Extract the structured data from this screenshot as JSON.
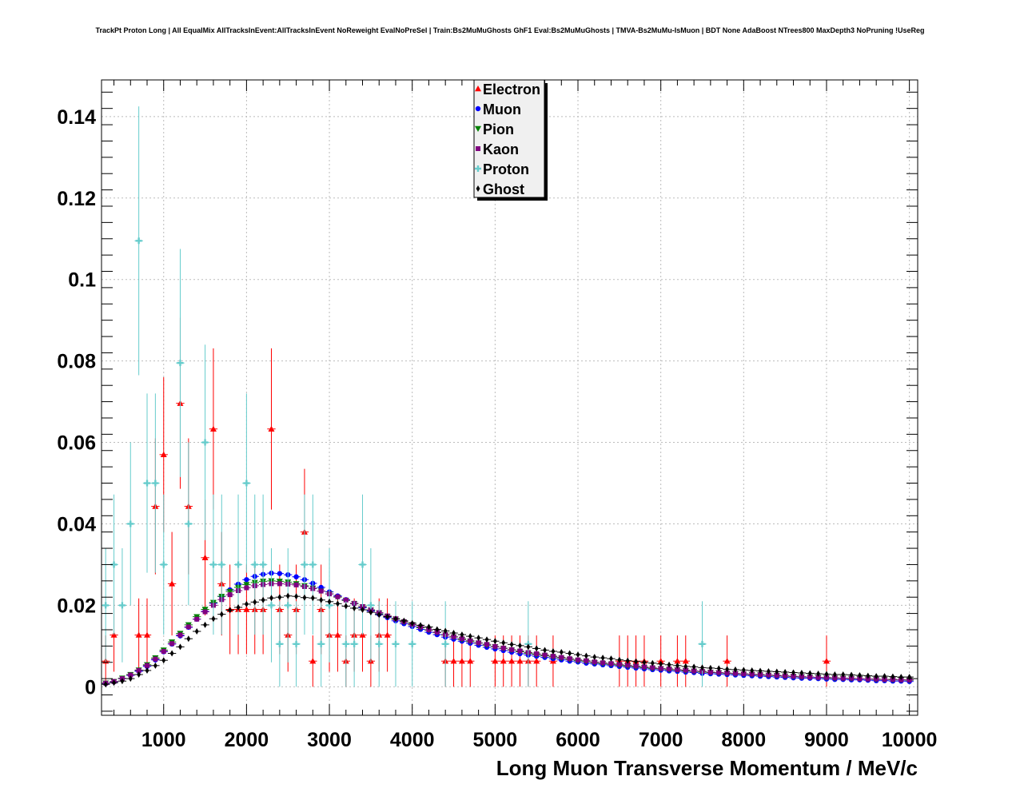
{
  "chart_data": {
    "type": "scatter",
    "title": "TrackPt Proton Long | All EqualMix AllTracksInEvent:AllTracksInEvent NoReweight EvalNoPreSel | Train:Bs2MuMuGhosts GhF1 Eval:Bs2MuMuGhosts | TMVA-Bs2MuMu-IsMuon | BDT None AdaBoost NTrees800 MaxDepth3 NoPruning !UseReg",
    "xlabel": "Long Muon Transverse Momentum / MeV/c",
    "ylabel": "",
    "xlim": [
      250,
      10100
    ],
    "ylim": [
      -0.007,
      0.149
    ],
    "xticks": [
      1000,
      2000,
      3000,
      4000,
      5000,
      6000,
      7000,
      8000,
      9000,
      10000
    ],
    "yticks": [
      0,
      0.02,
      0.04,
      0.06,
      0.08,
      0.1,
      0.12,
      0.14
    ],
    "xtick_labels": [
      "1000",
      "2000",
      "3000",
      "4000",
      "5000",
      "6000",
      "7000",
      "8000",
      "9000",
      "10000"
    ],
    "ytick_labels": [
      "0",
      "0.02",
      "0.04",
      "0.06",
      "0.08",
      "0.1",
      "0.12",
      "0.14"
    ],
    "grid": true,
    "legend_position": "top-center",
    "bin_width": 100,
    "series": [
      {
        "name": "Electron",
        "color": "#ff0000",
        "marker": "triangle-up",
        "x": [
          300,
          400,
          700,
          800,
          900,
          1000,
          1100,
          1200,
          1300,
          1500,
          1600,
          1700,
          1800,
          1900,
          2000,
          2100,
          2200,
          2300,
          2400,
          2500,
          2600,
          2700,
          2800,
          2900,
          3000,
          3100,
          3200,
          3300,
          3400,
          3500,
          3600,
          3700,
          4400,
          4500,
          4600,
          4700,
          5000,
          5100,
          5200,
          5300,
          5400,
          5500,
          5700,
          6500,
          6600,
          6700,
          6800,
          7000,
          7200,
          7300,
          7800,
          9000
        ],
        "y": [
          0.0063,
          0.0127,
          0.0127,
          0.0127,
          0.0443,
          0.057,
          0.0253,
          0.0696,
          0.0443,
          0.0317,
          0.0633,
          0.0253,
          0.019,
          0.019,
          0.019,
          0.019,
          0.019,
          0.0633,
          0.019,
          0.0127,
          0.019,
          0.038,
          0.0063,
          0.019,
          0.0127,
          0.0127,
          0.0063,
          0.0127,
          0.0127,
          0.0063,
          0.0127,
          0.0127,
          0.0063,
          0.0063,
          0.0063,
          0.0063,
          0.0063,
          0.0063,
          0.0063,
          0.0063,
          0.0063,
          0.0063,
          0.0063,
          0.0063,
          0.0063,
          0.0063,
          0.0063,
          0.0063,
          0.0063,
          0.0063,
          0.0063,
          0.0063
        ],
        "yerr": [
          0.0063,
          0.009,
          0.009,
          0.009,
          0.0167,
          0.019,
          0.0127,
          0.021,
          0.0167,
          0.0142,
          0.0198,
          0.0127,
          0.011,
          0.011,
          0.011,
          0.011,
          0.011,
          0.0198,
          0.011,
          0.009,
          0.011,
          0.0155,
          0.0063,
          0.011,
          0.009,
          0.009,
          0.0063,
          0.009,
          0.009,
          0.0063,
          0.009,
          0.009,
          0.0063,
          0.0063,
          0.0063,
          0.0063,
          0.0063,
          0.0063,
          0.0063,
          0.0063,
          0.0063,
          0.0063,
          0.0063,
          0.0063,
          0.0063,
          0.0063,
          0.0063,
          0.0063,
          0.0063,
          0.0063,
          0.0063,
          0.0063
        ]
      },
      {
        "name": "Muon",
        "color": "#0000ff",
        "marker": "circle",
        "x": [
          300,
          400,
          500,
          600,
          700,
          800,
          900,
          1000,
          1100,
          1200,
          1300,
          1400,
          1500,
          1600,
          1700,
          1800,
          1900,
          2000,
          2100,
          2200,
          2300,
          2400,
          2500,
          2600,
          2700,
          2800,
          2900,
          3000,
          3100,
          3200,
          3300,
          3400,
          3500,
          3600,
          3700,
          3800,
          3900,
          4000,
          4100,
          4200,
          4300,
          4400,
          4500,
          4600,
          4700,
          4800,
          4900,
          5000,
          5100,
          5200,
          5300,
          5400,
          5500,
          5600,
          5700,
          5800,
          5900,
          6000,
          6100,
          6200,
          6300,
          6400,
          6500,
          6600,
          6700,
          6800,
          6900,
          7000,
          7100,
          7200,
          7300,
          7400,
          7500,
          7600,
          7700,
          7800,
          7900,
          8000,
          8100,
          8200,
          8300,
          8400,
          8500,
          8600,
          8700,
          8800,
          8900,
          9000,
          9100,
          9200,
          9300,
          9400,
          9500,
          9600,
          9700,
          9800,
          9900,
          10000
        ],
        "y": [
          0.0008,
          0.0012,
          0.002,
          0.0028,
          0.0038,
          0.005,
          0.0066,
          0.0086,
          0.0105,
          0.0125,
          0.0146,
          0.0166,
          0.0185,
          0.0205,
          0.0222,
          0.0238,
          0.0252,
          0.0263,
          0.0271,
          0.0276,
          0.0279,
          0.0278,
          0.0275,
          0.027,
          0.0263,
          0.0254,
          0.0244,
          0.0233,
          0.0223,
          0.0214,
          0.0204,
          0.0194,
          0.0186,
          0.0178,
          0.017,
          0.0162,
          0.0155,
          0.0148,
          0.0141,
          0.0134,
          0.0128,
          0.0122,
          0.0117,
          0.0112,
          0.0107,
          0.0102,
          0.0097,
          0.0093,
          0.0089,
          0.0085,
          0.0081,
          0.0078,
          0.0075,
          0.0072,
          0.0069,
          0.0066,
          0.0063,
          0.0061,
          0.0058,
          0.0056,
          0.0054,
          0.0052,
          0.005,
          0.0048,
          0.0046,
          0.0044,
          0.0042,
          0.0041,
          0.0039,
          0.0038,
          0.0036,
          0.0035,
          0.0033,
          0.0032,
          0.0031,
          0.003,
          0.0029,
          0.0028,
          0.0027,
          0.0026,
          0.0025,
          0.0024,
          0.0023,
          0.0022,
          0.0021,
          0.0021,
          0.002,
          0.0019,
          0.0018,
          0.0018,
          0.0017,
          0.0017,
          0.0016,
          0.0015,
          0.0015,
          0.0014,
          0.0014,
          0.0013
        ]
      },
      {
        "name": "Pion",
        "color": "#008000",
        "marker": "triangle-down",
        "x": [
          300,
          400,
          500,
          600,
          700,
          800,
          900,
          1000,
          1100,
          1200,
          1300,
          1400,
          1500,
          1600,
          1700,
          1800,
          1900,
          2000,
          2100,
          2200,
          2300,
          2400,
          2500,
          2600,
          2700,
          2800,
          2900,
          3000,
          3100,
          3200,
          3300,
          3400,
          3500,
          3600,
          3700,
          3800,
          3900,
          4000,
          4100,
          4200,
          4300,
          4400,
          4500,
          4600,
          4700,
          4800,
          4900,
          5000,
          5100,
          5200,
          5300,
          5400,
          5500,
          5600,
          5700,
          5800,
          5900,
          6000,
          6100,
          6200,
          6300,
          6400,
          6500,
          6600,
          6700,
          6800,
          6900,
          7000,
          7100,
          7200,
          7300,
          7400,
          7500,
          7600,
          7700,
          7800,
          7900,
          8000,
          8100,
          8200,
          8300,
          8400,
          8500,
          8600,
          8700,
          8800,
          8900,
          9000,
          9100,
          9200,
          9300,
          9400,
          9500,
          9600,
          9700,
          9800,
          9900,
          10000
        ],
        "y": [
          0.0009,
          0.0013,
          0.0021,
          0.003,
          0.0041,
          0.0054,
          0.0071,
          0.009,
          0.011,
          0.0131,
          0.0152,
          0.0172,
          0.019,
          0.0207,
          0.0222,
          0.0234,
          0.0244,
          0.0251,
          0.0256,
          0.0259,
          0.026,
          0.0259,
          0.0257,
          0.0253,
          0.0248,
          0.0242,
          0.0235,
          0.0228,
          0.022,
          0.0212,
          0.0204,
          0.0196,
          0.0188,
          0.0181,
          0.0173,
          0.0166,
          0.0159,
          0.0152,
          0.0145,
          0.0139,
          0.0133,
          0.0127,
          0.0122,
          0.0116,
          0.0111,
          0.0107,
          0.0102,
          0.0098,
          0.0094,
          0.009,
          0.0086,
          0.0082,
          0.0079,
          0.0076,
          0.0073,
          0.007,
          0.0067,
          0.0064,
          0.0062,
          0.0059,
          0.0057,
          0.0055,
          0.0053,
          0.0051,
          0.0049,
          0.0047,
          0.0045,
          0.0044,
          0.0042,
          0.0041,
          0.0039,
          0.0038,
          0.0036,
          0.0035,
          0.0034,
          0.0033,
          0.0032,
          0.0031,
          0.003,
          0.0029,
          0.0028,
          0.0027,
          0.0026,
          0.0025,
          0.0024,
          0.0024,
          0.0023,
          0.0022,
          0.0021,
          0.0021,
          0.002,
          0.002,
          0.0019,
          0.0018,
          0.0018,
          0.0017,
          0.0017,
          0.0016
        ]
      },
      {
        "name": "Kaon",
        "color": "#800080",
        "marker": "square",
        "x": [
          300,
          400,
          500,
          600,
          700,
          800,
          900,
          1000,
          1100,
          1200,
          1300,
          1400,
          1500,
          1600,
          1700,
          1800,
          1900,
          2000,
          2100,
          2200,
          2300,
          2400,
          2500,
          2600,
          2700,
          2800,
          2900,
          3000,
          3100,
          3200,
          3300,
          3400,
          3500,
          3600,
          3700,
          3800,
          3900,
          4000,
          4100,
          4200,
          4300,
          4400,
          4500,
          4600,
          4700,
          4800,
          4900,
          5000,
          5100,
          5200,
          5300,
          5400,
          5500,
          5600,
          5700,
          5800,
          5900,
          6000,
          6100,
          6200,
          6300,
          6400,
          6500,
          6600,
          6700,
          6800,
          6900,
          7000,
          7100,
          7200,
          7300,
          7400,
          7500,
          7600,
          7700,
          7800,
          7900,
          8000,
          8100,
          8200,
          8300,
          8400,
          8500,
          8600,
          8700,
          8800,
          8900,
          9000,
          9100,
          9200,
          9300,
          9400,
          9500,
          9600,
          9700,
          9800,
          9900,
          10000
        ],
        "y": [
          0.0009,
          0.0013,
          0.002,
          0.0029,
          0.004,
          0.0052,
          0.0068,
          0.0087,
          0.0106,
          0.0127,
          0.0147,
          0.0166,
          0.0184,
          0.02,
          0.0214,
          0.0226,
          0.0236,
          0.0243,
          0.0248,
          0.0251,
          0.0253,
          0.0253,
          0.0252,
          0.025,
          0.0246,
          0.0241,
          0.0235,
          0.0228,
          0.0221,
          0.0213,
          0.0205,
          0.0197,
          0.0189,
          0.0182,
          0.0174,
          0.0167,
          0.016,
          0.0153,
          0.0147,
          0.014,
          0.0134,
          0.0128,
          0.0123,
          0.0118,
          0.0113,
          0.0108,
          0.0104,
          0.0099,
          0.0095,
          0.0091,
          0.0088,
          0.0084,
          0.0081,
          0.0078,
          0.0075,
          0.0072,
          0.0069,
          0.0066,
          0.0064,
          0.0061,
          0.0059,
          0.0057,
          0.0055,
          0.0053,
          0.0051,
          0.0049,
          0.0047,
          0.0045,
          0.0044,
          0.0042,
          0.0041,
          0.0039,
          0.0038,
          0.0036,
          0.0035,
          0.0034,
          0.0033,
          0.0032,
          0.0031,
          0.003,
          0.0029,
          0.0028,
          0.0027,
          0.0026,
          0.0025,
          0.0024,
          0.0023,
          0.0023,
          0.0022,
          0.0021,
          0.0021,
          0.002,
          0.0019,
          0.0019,
          0.0018,
          0.0018,
          0.0017,
          0.0017
        ]
      },
      {
        "name": "Proton",
        "color": "#66cccc",
        "marker": "cross",
        "x": [
          300,
          400,
          500,
          600,
          700,
          800,
          900,
          1000,
          1200,
          1300,
          1500,
          1600,
          1700,
          1900,
          2000,
          2100,
          2200,
          2300,
          2400,
          2500,
          2600,
          2700,
          2800,
          2900,
          3000,
          3200,
          3300,
          3400,
          3500,
          3600,
          3800,
          4000,
          4400,
          5400,
          7500
        ],
        "y": [
          0.02,
          0.03,
          0.02,
          0.04,
          0.1095,
          0.05,
          0.05,
          0.03,
          0.0795,
          0.04,
          0.06,
          0.03,
          0.03,
          0.03,
          0.05,
          0.03,
          0.03,
          0.02,
          0.0105,
          0.02,
          0.0105,
          0.03,
          0.03,
          0.0105,
          0.02,
          0.0105,
          0.0105,
          0.03,
          0.02,
          0.0105,
          0.0105,
          0.0105,
          0.0105,
          0.0105,
          0.0105
        ],
        "yerr": [
          0.014,
          0.0172,
          0.014,
          0.02,
          0.033,
          0.022,
          0.022,
          0.0172,
          0.028,
          0.02,
          0.024,
          0.0172,
          0.0172,
          0.0172,
          0.022,
          0.0172,
          0.0172,
          0.014,
          0.0105,
          0.014,
          0.0105,
          0.0172,
          0.0172,
          0.0105,
          0.014,
          0.0105,
          0.0105,
          0.0172,
          0.014,
          0.0105,
          0.0105,
          0.0105,
          0.0105,
          0.0105,
          0.0105
        ]
      },
      {
        "name": "Ghost",
        "color": "#000000",
        "marker": "diamond",
        "x": [
          300,
          400,
          500,
          600,
          700,
          800,
          900,
          1000,
          1100,
          1200,
          1300,
          1400,
          1500,
          1600,
          1700,
          1800,
          1900,
          2000,
          2100,
          2200,
          2300,
          2400,
          2500,
          2600,
          2700,
          2800,
          2900,
          3000,
          3100,
          3200,
          3300,
          3400,
          3500,
          3600,
          3700,
          3800,
          3900,
          4000,
          4100,
          4200,
          4300,
          4400,
          4500,
          4600,
          4700,
          4800,
          4900,
          5000,
          5100,
          5200,
          5300,
          5400,
          5500,
          5600,
          5700,
          5800,
          5900,
          6000,
          6100,
          6200,
          6300,
          6400,
          6500,
          6600,
          6700,
          6800,
          6900,
          7000,
          7100,
          7200,
          7300,
          7400,
          7500,
          7600,
          7700,
          7800,
          7900,
          8000,
          8100,
          8200,
          8300,
          8400,
          8500,
          8600,
          8700,
          8800,
          8900,
          9000,
          9100,
          9200,
          9300,
          9400,
          9500,
          9600,
          9700,
          9800,
          9900,
          10000
        ],
        "y": [
          0.0006,
          0.001,
          0.0014,
          0.002,
          0.003,
          0.004,
          0.0052,
          0.0065,
          0.0082,
          0.0098,
          0.0118,
          0.0136,
          0.0152,
          0.0167,
          0.0178,
          0.0188,
          0.0195,
          0.0203,
          0.0208,
          0.0213,
          0.0218,
          0.022,
          0.0223,
          0.0222,
          0.0219,
          0.0218,
          0.0213,
          0.0209,
          0.0204,
          0.0198,
          0.0193,
          0.0189,
          0.0183,
          0.0177,
          0.0172,
          0.0167,
          0.0162,
          0.0156,
          0.0151,
          0.0147,
          0.0141,
          0.0137,
          0.0132,
          0.0128,
          0.0124,
          0.012,
          0.0116,
          0.0112,
          0.0108,
          0.0104,
          0.0101,
          0.0098,
          0.0094,
          0.009,
          0.0087,
          0.0085,
          0.0082,
          0.0079,
          0.0076,
          0.0073,
          0.0071,
          0.0069,
          0.0066,
          0.0064,
          0.0062,
          0.006,
          0.0058,
          0.0056,
          0.0054,
          0.0052,
          0.005,
          0.0049,
          0.0047,
          0.0046,
          0.0045,
          0.0043,
          0.0042,
          0.0041,
          0.004,
          0.0039,
          0.0038,
          0.0037,
          0.0036,
          0.0035,
          0.0034,
          0.0033,
          0.0032,
          0.0031,
          0.003,
          0.003,
          0.0029,
          0.0028,
          0.0027,
          0.0026,
          0.0026,
          0.0025,
          0.0024,
          0.0024
        ]
      }
    ]
  }
}
